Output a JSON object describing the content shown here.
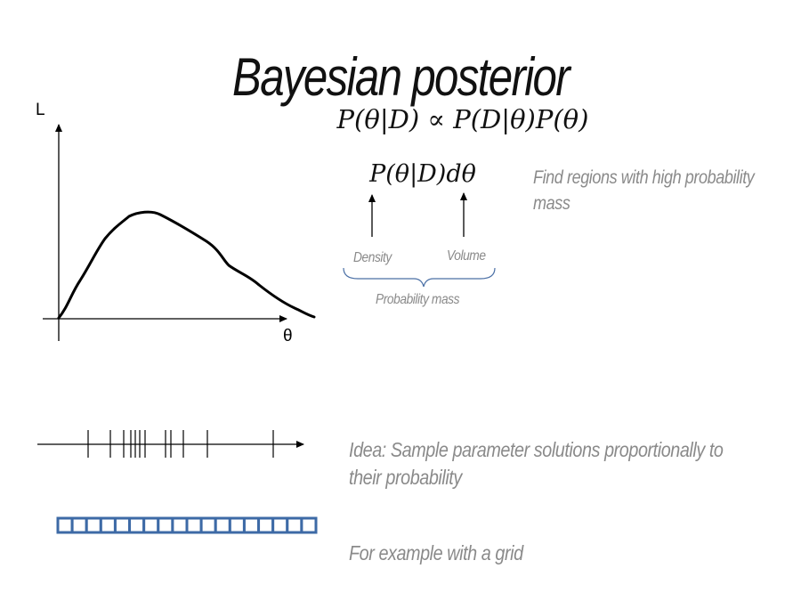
{
  "slide": {
    "title": "Bayesian posterior",
    "formula_main": "P(θ|D) ∝ P(D|θ)P(θ)",
    "formula_mass": "P(θ|D)dθ",
    "note_find": "Find regions with high probability mass",
    "label_density": "Density",
    "label_volume": "Volume",
    "label_mass": "Probability mass",
    "note_idea": "Idea: Sample parameter solutions proportionally to their probability",
    "note_grid": "For example with a grid"
  },
  "plot": {
    "y_axis_label": "L",
    "x_axis_label": "θ"
  },
  "colors": {
    "text": "#111111",
    "muted_text": "#8a8a8a",
    "brace": "#4a6fa5",
    "grid": "#3d6aa6"
  },
  "grid": {
    "cell_count": 18
  }
}
